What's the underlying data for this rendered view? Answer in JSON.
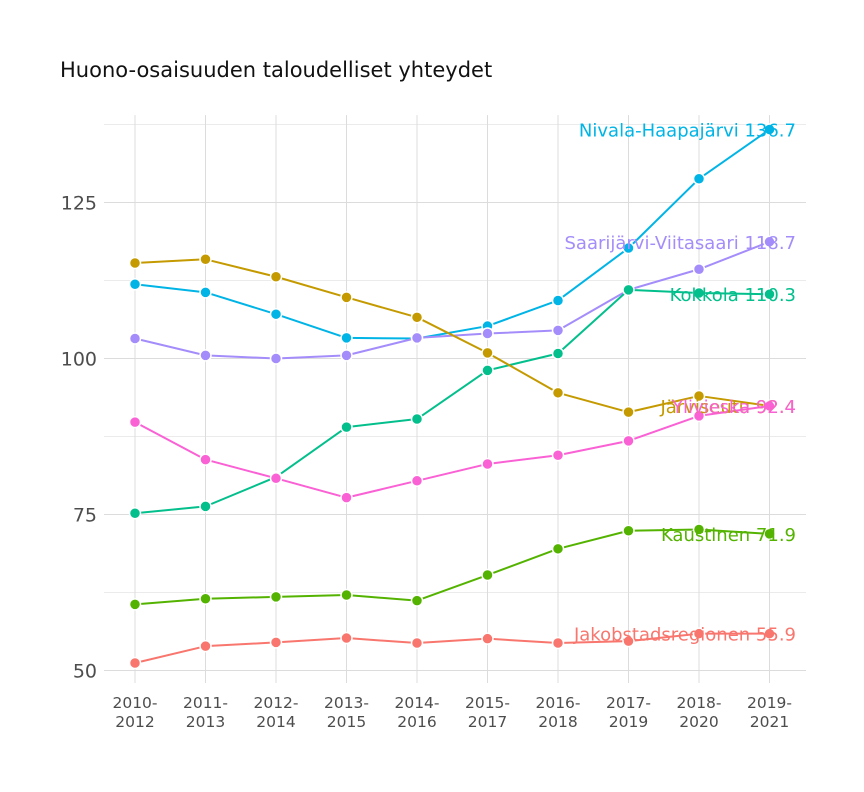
{
  "chart_data": {
    "type": "line",
    "title": "Huono-osaisuuden taloudelliset yhteydet",
    "xlabel": "",
    "ylabel": "",
    "categories": [
      [
        "2010-",
        "2012"
      ],
      [
        "2011-",
        "2013"
      ],
      [
        "2012-",
        "2014"
      ],
      [
        "2013-",
        "2015"
      ],
      [
        "2014-",
        "2016"
      ],
      [
        "2015-",
        "2017"
      ],
      [
        "2016-",
        "2018"
      ],
      [
        "2017-",
        "2019"
      ],
      [
        "2018-",
        "2020"
      ],
      [
        "2019-",
        "2021"
      ]
    ],
    "yticks": [
      50,
      75,
      100,
      125
    ],
    "ylim": [
      48,
      139
    ],
    "grid": true,
    "legend": "none (direct end labels)",
    "series": [
      {
        "name": "Nivala-Haapajärvi",
        "label": "Nivala-Haapajärvi 136.7",
        "color": "#00b4e6",
        "values": [
          111.9,
          110.6,
          107.1,
          103.3,
          103.2,
          105.2,
          109.3,
          117.7,
          128.8,
          136.7
        ]
      },
      {
        "name": "Saarijärvi-Viitasaari",
        "label": "Saarijärvi-Viitasaari 118.7",
        "color": "#a48dfa",
        "values": [
          103.2,
          100.5,
          100.0,
          100.5,
          103.3,
          104.0,
          104.5,
          111.0,
          114.3,
          118.7
        ]
      },
      {
        "name": "Kokkola",
        "label": "Kokkola 110.3",
        "color": "#03bf8c",
        "values": [
          75.2,
          76.3,
          81.0,
          89.0,
          90.3,
          98.1,
          100.8,
          111.0,
          110.5,
          110.3
        ]
      },
      {
        "name": "Järviseutu",
        "label": "Järviseutu 92.4",
        "color": "#c49a00",
        "values": [
          115.3,
          115.9,
          113.1,
          109.8,
          106.6,
          100.9,
          94.5,
          91.4,
          94.0,
          92.4
        ]
      },
      {
        "name": "Ylivieska",
        "label": "Ylivieska 92.4",
        "color": "#fa61d5",
        "values": [
          89.8,
          83.8,
          80.8,
          77.7,
          80.4,
          83.1,
          84.5,
          86.8,
          90.8,
          92.4
        ]
      },
      {
        "name": "Kaustinen",
        "label": "Kaustinen 71.9",
        "color": "#54b300",
        "values": [
          60.6,
          61.5,
          61.8,
          62.1,
          61.2,
          65.3,
          69.5,
          72.4,
          72.6,
          71.9
        ]
      },
      {
        "name": "Jakobstadsregionen",
        "label": "Jakobstadsregionen 55.9",
        "color": "#f8766d",
        "values": [
          51.2,
          53.9,
          54.5,
          55.2,
          54.4,
          55.1,
          54.4,
          54.7,
          55.9,
          55.9
        ]
      }
    ]
  }
}
